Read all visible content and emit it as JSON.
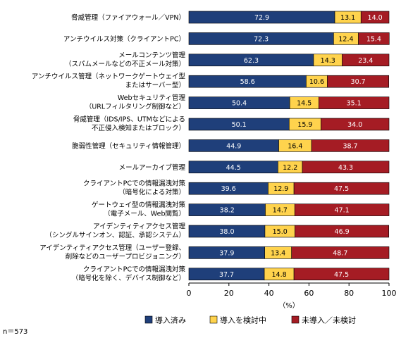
{
  "chart_data": {
    "type": "bar",
    "stacked": true,
    "orientation": "horizontal",
    "categories": [
      [
        "脅威管理（ファイアウォール／VPN）"
      ],
      [
        "アンチウイルス対策（クライアントPC）"
      ],
      [
        "メールコンテンツ管理",
        "（スパムメールなどの不正メール対策）"
      ],
      [
        "アンチウイルス管理（ネットワークゲートウェイ型",
        "またはサーバー型）"
      ],
      [
        "Webセキュリティ管理",
        "（URLフィルタリング制御など）"
      ],
      [
        "脅威管理（IDS/IPS、UTMなどによる",
        "不正侵入検知またはブロック）"
      ],
      [
        "脆弱性管理（セキュリティ情報管理）"
      ],
      [
        "メールアーカイブ管理"
      ],
      [
        "クライアントPCでの情報漏洩対策",
        "（暗号化による対策）"
      ],
      [
        "ゲートウェイ型の情報漏洩対策",
        "（電子メール、Web閲覧）"
      ],
      [
        "アイデンティティアクセス管理",
        "（シングルサインオン、認証、承認システム）"
      ],
      [
        "アイデンティティアクセス管理（ユーザー登録、",
        "削除などのユーザープロビジョニング）"
      ],
      [
        "クライアントPCでの情報漏洩対策",
        "（暗号化を除く、デバイス制御など）"
      ]
    ],
    "series": [
      {
        "name": "導入済み",
        "color": "#1f3f7a",
        "label_color": "#ffffff",
        "values": [
          72.9,
          72.3,
          62.3,
          58.6,
          50.4,
          50.1,
          44.9,
          44.5,
          39.6,
          38.2,
          38.0,
          37.9,
          37.7
        ]
      },
      {
        "name": "導入を検討中",
        "color": "#ffd34d",
        "label_color": "#000000",
        "values": [
          13.1,
          12.4,
          14.3,
          10.6,
          14.5,
          15.9,
          16.4,
          12.2,
          12.9,
          14.7,
          15.0,
          13.4,
          14.8
        ]
      },
      {
        "name": "未導入／未検討",
        "color": "#a51c24",
        "label_color": "#ffffff",
        "values": [
          14.0,
          15.4,
          23.4,
          30.7,
          35.1,
          34.0,
          38.7,
          43.3,
          47.5,
          47.1,
          46.9,
          48.7,
          47.5
        ]
      }
    ],
    "xlim": [
      0,
      100
    ],
    "xticks": [
      "0",
      "20",
      "40",
      "60",
      "80",
      "100"
    ],
    "xlabel": "（%）",
    "legend_position": "bottom",
    "grid": false
  },
  "note": "n＝573"
}
